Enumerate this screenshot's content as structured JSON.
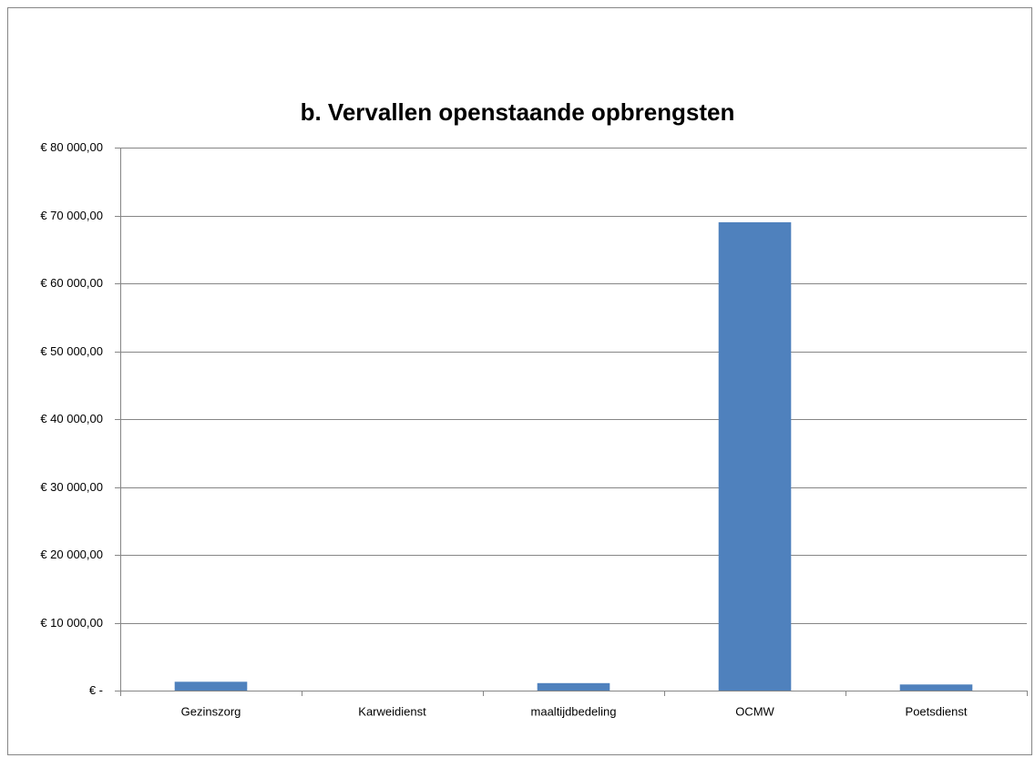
{
  "chart_data": {
    "type": "bar",
    "title": "b. Vervallen openstaande opbrengsten",
    "categories": [
      "Gezinszorg",
      "Karweidienst",
      "maaltijdbedeling",
      "OCMW",
      "Poetsdienst"
    ],
    "values": [
      1300,
      0,
      1100,
      69000,
      900
    ],
    "color": "#4f81bd",
    "ylim": [
      0,
      80000
    ],
    "yticks": [
      {
        "value": 0,
        "label": "€ -"
      },
      {
        "value": 10000,
        "label": "€ 10 000,00"
      },
      {
        "value": 20000,
        "label": "€ 20 000,00"
      },
      {
        "value": 30000,
        "label": "€ 30 000,00"
      },
      {
        "value": 40000,
        "label": "€ 40 000,00"
      },
      {
        "value": 50000,
        "label": "€ 50 000,00"
      },
      {
        "value": 60000,
        "label": "€ 60 000,00"
      },
      {
        "value": 70000,
        "label": "€ 70 000,00"
      },
      {
        "value": 80000,
        "label": "€ 80 000,00"
      }
    ],
    "grid": true
  }
}
